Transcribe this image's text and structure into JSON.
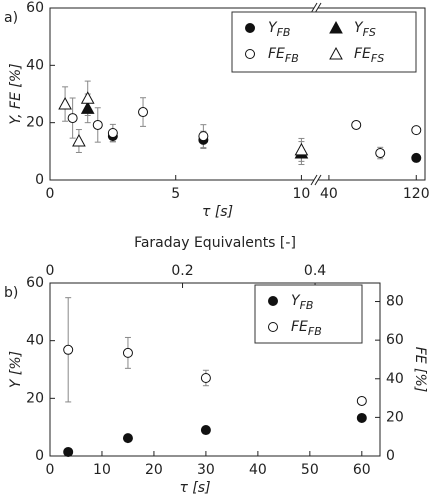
{
  "chart_data": [
    {
      "type": "scatter",
      "panel_label": "a)",
      "xlabel": "τ [s]",
      "ylabel": "Y, FE [%]",
      "x_segments": [
        {
          "xlim": [
            0,
            10.5
          ],
          "xticks": [
            0,
            5,
            10
          ]
        },
        {
          "xlim": [
            30,
            128
          ],
          "xticks": [
            40,
            120
          ]
        }
      ],
      "ylim": [
        0,
        60
      ],
      "yticks": [
        0,
        20,
        40,
        60
      ],
      "series": [
        {
          "name": "Y",
          "name_sub": "FB",
          "marker": "circle",
          "filled": true,
          "color": "#111",
          "x": [
            2.5,
            6.1,
            120
          ],
          "values": [
            15.3,
            14.0,
            7.7
          ],
          "errors": [
            2,
            3,
            1
          ]
        },
        {
          "name": "Y",
          "name_sub": "FS",
          "marker": "triangle",
          "filled": true,
          "color": "#111",
          "x": [
            1.5,
            10
          ],
          "values": [
            25,
            9.4
          ],
          "errors": [
            5,
            4
          ]
        },
        {
          "name": "FE",
          "name_sub": "FB",
          "marker": "circle",
          "filled": false,
          "color": "#111",
          "x": [
            0.9,
            1.9,
            2.5,
            3.7,
            6.1,
            65,
            87,
            120
          ],
          "values": [
            21.6,
            19.2,
            16.4,
            23.7,
            15.3,
            19.2,
            9.4,
            17.4
          ],
          "errors": [
            7,
            6,
            3,
            5,
            4,
            1,
            2,
            1
          ]
        },
        {
          "name": "FE",
          "name_sub": "FS",
          "marker": "triangle",
          "filled": false,
          "color": "#111",
          "x": [
            0.6,
            1.15,
            1.5,
            10
          ],
          "values": [
            26.5,
            13.6,
            28.5,
            10.5
          ],
          "errors": [
            6,
            4,
            6,
            4
          ]
        }
      ]
    },
    {
      "type": "scatter",
      "panel_label": "b)",
      "xlabel": "τ [s]",
      "ylabel": "Y [%]",
      "y2label": "FE [%]",
      "x2label": "Faraday Equivalents [-]",
      "xlim": [
        0,
        63.5
      ],
      "xticks": [
        0,
        10,
        20,
        30,
        40,
        50,
        60
      ],
      "x2lim": [
        0,
        0.498
      ],
      "x2ticks": [
        0,
        0.2,
        0.4
      ],
      "ylim": [
        0,
        60
      ],
      "yticks": [
        0,
        20,
        40,
        60
      ],
      "y2lim": [
        0,
        89.6
      ],
      "y2ticks": [
        0,
        20,
        40,
        60,
        80
      ],
      "series": [
        {
          "name": "Y",
          "name_sub": "FB",
          "marker": "circle",
          "filled": true,
          "color": "#111",
          "x": [
            3.5,
            15,
            30,
            60
          ],
          "values": [
            1.4,
            6.2,
            9,
            13.2
          ],
          "errors": [
            0,
            0,
            0,
            0
          ]
        },
        {
          "name": "FE",
          "name_sub": "FB",
          "marker": "circle",
          "filled": false,
          "color": "#111",
          "axis": "y2",
          "x": [
            3.5,
            15,
            30,
            60
          ],
          "values": [
            55,
            53.4,
            40.4,
            28.5
          ],
          "errors": [
            27,
            8,
            4,
            1
          ]
        }
      ]
    }
  ]
}
